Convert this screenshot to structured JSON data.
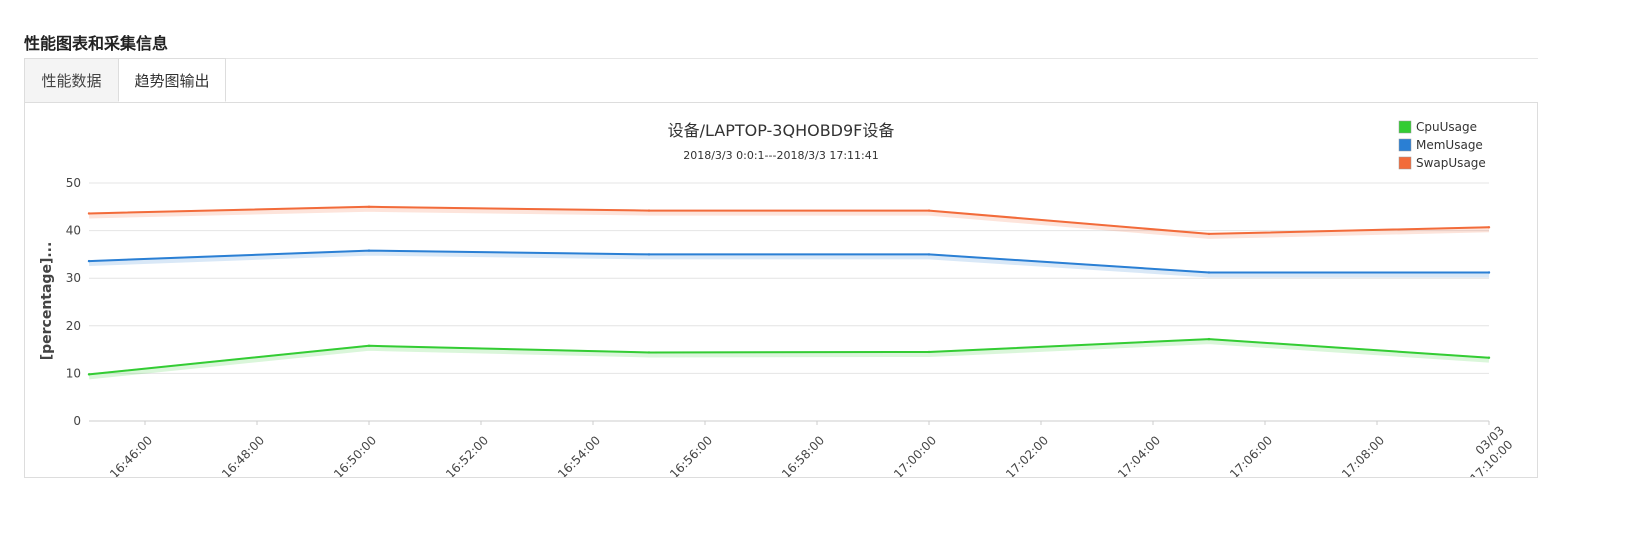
{
  "section": {
    "title": "性能图表和采集信息"
  },
  "tabs": [
    {
      "label": "性能数据"
    },
    {
      "label": "趋势图输出"
    }
  ],
  "chart_data": {
    "type": "line",
    "title": "设备/LAPTOP-3QHOBD9F设备",
    "subtitle": "2018/3/3 0:0:1---2018/3/3 17:11:41",
    "ylabel": "[percentage]...",
    "xlabel": "",
    "ylim": [
      0,
      50
    ],
    "yticks": [
      0,
      10,
      20,
      30,
      40,
      50
    ],
    "x_range_minutes": [
      "16:45",
      "17:10"
    ],
    "xticks": [
      {
        "label": "03/03 16:46:00",
        "minute": 1
      },
      {
        "label": "03/03 16:48:00",
        "minute": 3
      },
      {
        "label": "03/03 16:50:00",
        "minute": 5
      },
      {
        "label": "03/03 16:52:00",
        "minute": 7
      },
      {
        "label": "03/03 16:54:00",
        "minute": 9
      },
      {
        "label": "03/03 16:56:00",
        "minute": 11
      },
      {
        "label": "03/03 16:58:00",
        "minute": 13
      },
      {
        "label": "03/03 17:00:00",
        "minute": 15
      },
      {
        "label": "03/03 17:02:00",
        "minute": 17
      },
      {
        "label": "03/03 17:04:00",
        "minute": 19
      },
      {
        "label": "03/03 17:06:00",
        "minute": 21
      },
      {
        "label": "03/03 17:08:00",
        "minute": 23
      },
      {
        "label": "03/03 17:10:00",
        "minute": 25,
        "lines": [
          "03/03",
          "17:10:00"
        ]
      }
    ],
    "x": [
      "16:45",
      "16:50",
      "16:55",
      "17:00",
      "17:05",
      "17:10"
    ],
    "series": [
      {
        "name": "CpuUsage",
        "color": "#33cc33",
        "values": [
          9.8,
          15.8,
          14.4,
          14.5,
          17.2,
          13.3
        ]
      },
      {
        "name": "MemUsage",
        "color": "#2a7fd4",
        "values": [
          33.6,
          35.8,
          35.0,
          35.0,
          31.2,
          31.2
        ]
      },
      {
        "name": "SwapUsage",
        "color": "#f26b3a",
        "values": [
          43.6,
          45.0,
          44.2,
          44.2,
          39.3,
          40.7
        ]
      }
    ],
    "grid": true,
    "legend": "top-right"
  }
}
